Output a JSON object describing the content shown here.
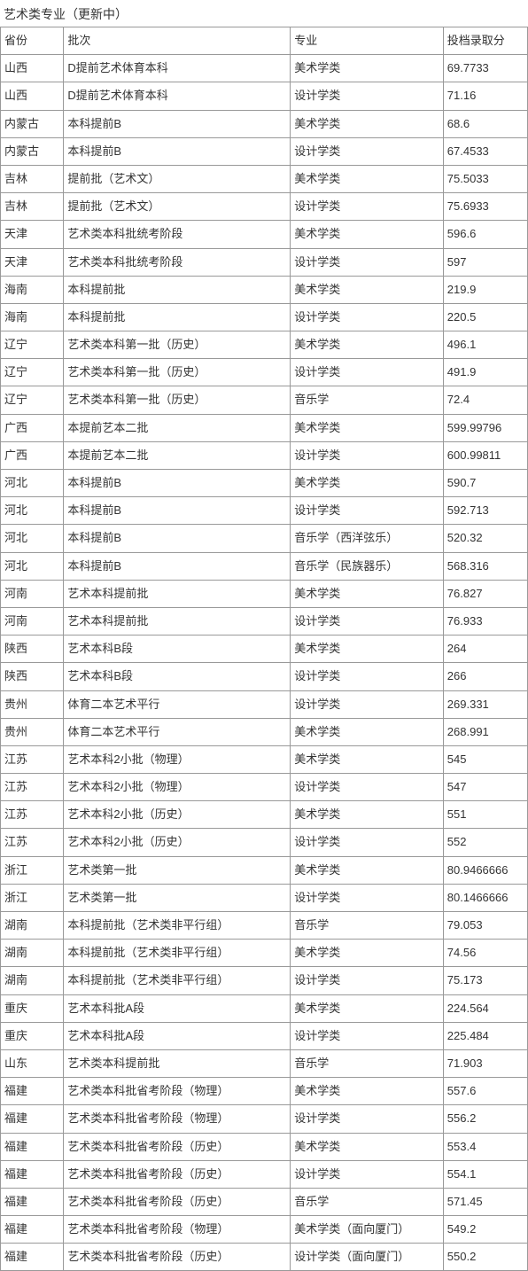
{
  "title": "艺术类专业（更新中）",
  "columns": [
    "省份",
    "批次",
    "专业",
    "投档录取分"
  ],
  "rows": [
    [
      "山西",
      "D提前艺术体育本科",
      "美术学类",
      "69.7733"
    ],
    [
      "山西",
      "D提前艺术体育本科",
      "设计学类",
      "71.16"
    ],
    [
      "内蒙古",
      "本科提前B",
      "美术学类",
      "68.6"
    ],
    [
      "内蒙古",
      "本科提前B",
      "设计学类",
      "67.4533"
    ],
    [
      "吉林",
      "提前批（艺术文）",
      "美术学类",
      "75.5033"
    ],
    [
      "吉林",
      "提前批（艺术文）",
      "设计学类",
      "75.6933"
    ],
    [
      "天津",
      "艺术类本科批统考阶段",
      "美术学类",
      "596.6"
    ],
    [
      "天津",
      "艺术类本科批统考阶段",
      "设计学类",
      "597"
    ],
    [
      "海南",
      "本科提前批",
      "美术学类",
      "219.9"
    ],
    [
      "海南",
      "本科提前批",
      "设计学类",
      "220.5"
    ],
    [
      "辽宁",
      "艺术类本科第一批（历史）",
      "美术学类",
      "496.1"
    ],
    [
      "辽宁",
      "艺术类本科第一批（历史）",
      "设计学类",
      "491.9"
    ],
    [
      "辽宁",
      "艺术类本科第一批（历史）",
      "音乐学",
      "72.4"
    ],
    [
      "广西",
      "本提前艺本二批",
      "美术学类",
      "599.99796"
    ],
    [
      "广西",
      "本提前艺本二批",
      "设计学类",
      "600.99811"
    ],
    [
      "河北",
      "本科提前B",
      "美术学类",
      "590.7"
    ],
    [
      "河北",
      "本科提前B",
      "设计学类",
      "592.713"
    ],
    [
      "河北",
      "本科提前B",
      "音乐学（西洋弦乐）",
      "520.32"
    ],
    [
      "河北",
      "本科提前B",
      "音乐学（民族器乐）",
      "568.316"
    ],
    [
      "河南",
      "艺术本科提前批",
      "美术学类",
      "76.827"
    ],
    [
      "河南",
      "艺术本科提前批",
      "设计学类",
      "76.933"
    ],
    [
      "陕西",
      "艺术本科B段",
      "美术学类",
      "264"
    ],
    [
      "陕西",
      "艺术本科B段",
      "设计学类",
      "266"
    ],
    [
      "贵州",
      "体育二本艺术平行",
      "设计学类",
      "269.331"
    ],
    [
      "贵州",
      "体育二本艺术平行",
      "美术学类",
      "268.991"
    ],
    [
      "江苏",
      "艺术本科2小批（物理）",
      "美术学类",
      "545"
    ],
    [
      "江苏",
      "艺术本科2小批（物理）",
      "设计学类",
      "547"
    ],
    [
      "江苏",
      "艺术本科2小批（历史）",
      "美术学类",
      "551"
    ],
    [
      "江苏",
      "艺术本科2小批（历史）",
      "设计学类",
      "552"
    ],
    [
      "浙江",
      "艺术类第一批",
      "美术学类",
      "80.9466666"
    ],
    [
      "浙江",
      "艺术类第一批",
      "设计学类",
      "80.1466666"
    ],
    [
      "湖南",
      "本科提前批（艺术类非平行组）",
      "音乐学",
      "79.053"
    ],
    [
      "湖南",
      "本科提前批（艺术类非平行组）",
      "美术学类",
      "74.56"
    ],
    [
      "湖南",
      "本科提前批（艺术类非平行组）",
      "设计学类",
      "75.173"
    ],
    [
      "重庆",
      "艺术本科批A段",
      "美术学类",
      "224.564"
    ],
    [
      "重庆",
      "艺术本科批A段",
      "设计学类",
      "225.484"
    ],
    [
      "山东",
      "艺术类本科提前批",
      "音乐学",
      "71.903"
    ],
    [
      "福建",
      "艺术类本科批省考阶段（物理）",
      "美术学类",
      "557.6"
    ],
    [
      "福建",
      "艺术类本科批省考阶段（物理）",
      "设计学类",
      "556.2"
    ],
    [
      "福建",
      "艺术类本科批省考阶段（历史）",
      "美术学类",
      "553.4"
    ],
    [
      "福建",
      "艺术类本科批省考阶段（历史）",
      "设计学类",
      "554.1"
    ],
    [
      "福建",
      "艺术类本科批省考阶段（历史）",
      "音乐学",
      "571.45"
    ],
    [
      "福建",
      "艺术类本科批省考阶段（物理）",
      "美术学类（面向厦门）",
      "549.2"
    ],
    [
      "福建",
      "艺术类本科批省考阶段（历史）",
      "设计学类（面向厦门）",
      "550.2"
    ]
  ]
}
